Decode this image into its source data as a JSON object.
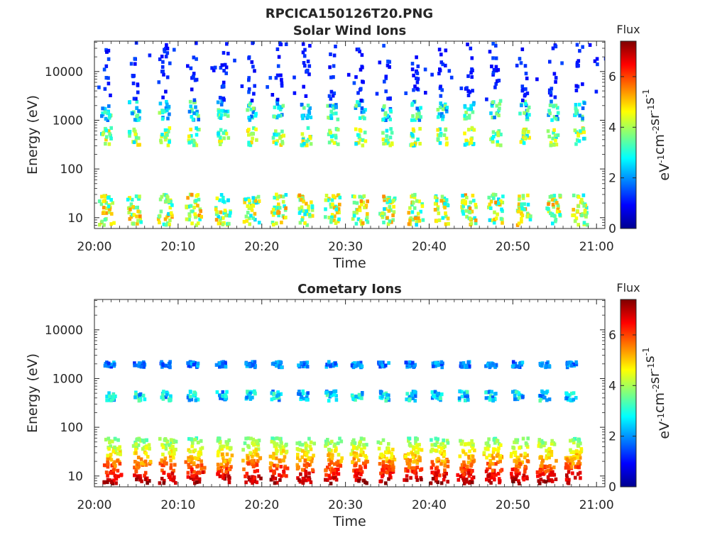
{
  "figure_title": "RPCICA150126T20.PNG",
  "colormap": [
    "#00008f",
    "#0000ff",
    "#007fff",
    "#00ffff",
    "#7fff7f",
    "#ffff00",
    "#ff7f00",
    "#ff0000",
    "#7f0000"
  ],
  "chart_data": [
    {
      "type": "heatmap",
      "title": "Solar Wind Ions",
      "xlabel": "Time",
      "ylabel": "Energy (eV)",
      "x_range": [
        "20:00",
        "21:01"
      ],
      "x_ticks": [
        "20:00",
        "20:10",
        "20:20",
        "20:30",
        "20:40",
        "20:50",
        "21:00"
      ],
      "y_scale": "log",
      "y_range": [
        6,
        42000
      ],
      "y_ticks": [
        10,
        100,
        1000,
        10000
      ],
      "y_tick_labels": [
        "10",
        "100",
        "1000",
        "10000"
      ],
      "colorbar": {
        "title": "Flux",
        "label": "eV-1cm-2sr-1s-1",
        "range": [
          0,
          7.4
        ],
        "ticks": [
          "0",
          "2",
          "4",
          "6"
        ]
      },
      "bursts_min": [
        1.3,
        4.6,
        8.2,
        11.7,
        15.2,
        18.6,
        21.8,
        25.1,
        28.3,
        31.6,
        34.8,
        38.2,
        41.4,
        44.6,
        47.8,
        51.2,
        54.6,
        57.8
      ],
      "features": [
        {
          "name": "low-energy band",
          "energy_eV": [
            7,
            30
          ],
          "flux": [
            2.5,
            5.5
          ]
        },
        {
          "name": "mid-energy band",
          "energy_eV": [
            300,
            700
          ],
          "flux": [
            2.5,
            5.0
          ]
        },
        {
          "name": "high-energy band",
          "energy_eV": [
            1000,
            2500
          ],
          "flux": [
            1.5,
            4.0
          ]
        },
        {
          "name": "sparse high-energy counts",
          "energy_eV": [
            2500,
            40000
          ],
          "flux": [
            0.8,
            1.5
          ]
        }
      ]
    },
    {
      "type": "heatmap",
      "title": "Cometary Ions",
      "xlabel": "Time",
      "ylabel": "Energy (eV)",
      "x_range": [
        "20:00",
        "21:01"
      ],
      "x_ticks": [
        "20:00",
        "20:10",
        "20:20",
        "20:30",
        "20:40",
        "20:50",
        "21:00"
      ],
      "y_scale": "log",
      "y_range": [
        6,
        42000
      ],
      "y_ticks": [
        10,
        100,
        1000,
        10000
      ],
      "y_tick_labels": [
        "10",
        "100",
        "1000",
        "10000"
      ],
      "colorbar": {
        "title": "Flux",
        "label": "eV-1cm-2sr-1s-1",
        "range": [
          0,
          7.4
        ],
        "ticks": [
          "0",
          "2",
          "4",
          "6"
        ]
      },
      "bursts_min": [
        1.7,
        5.2,
        8.3,
        11.6,
        15.0,
        18.4,
        21.6,
        24.8,
        28.1,
        31.2,
        34.4,
        37.6,
        40.8,
        44.0,
        47.2,
        50.4,
        53.6,
        56.8
      ],
      "features": [
        {
          "name": "low-energy band",
          "energy_eV": [
            7,
            60
          ],
          "flux": [
            3.5,
            7.2
          ]
        },
        {
          "name": "mid-energy band",
          "energy_eV": [
            350,
            550
          ],
          "flux": [
            1.5,
            3.5
          ]
        },
        {
          "name": "high-energy band",
          "energy_eV": [
            1700,
            2200
          ],
          "flux": [
            1.2,
            2.5
          ]
        }
      ]
    }
  ]
}
